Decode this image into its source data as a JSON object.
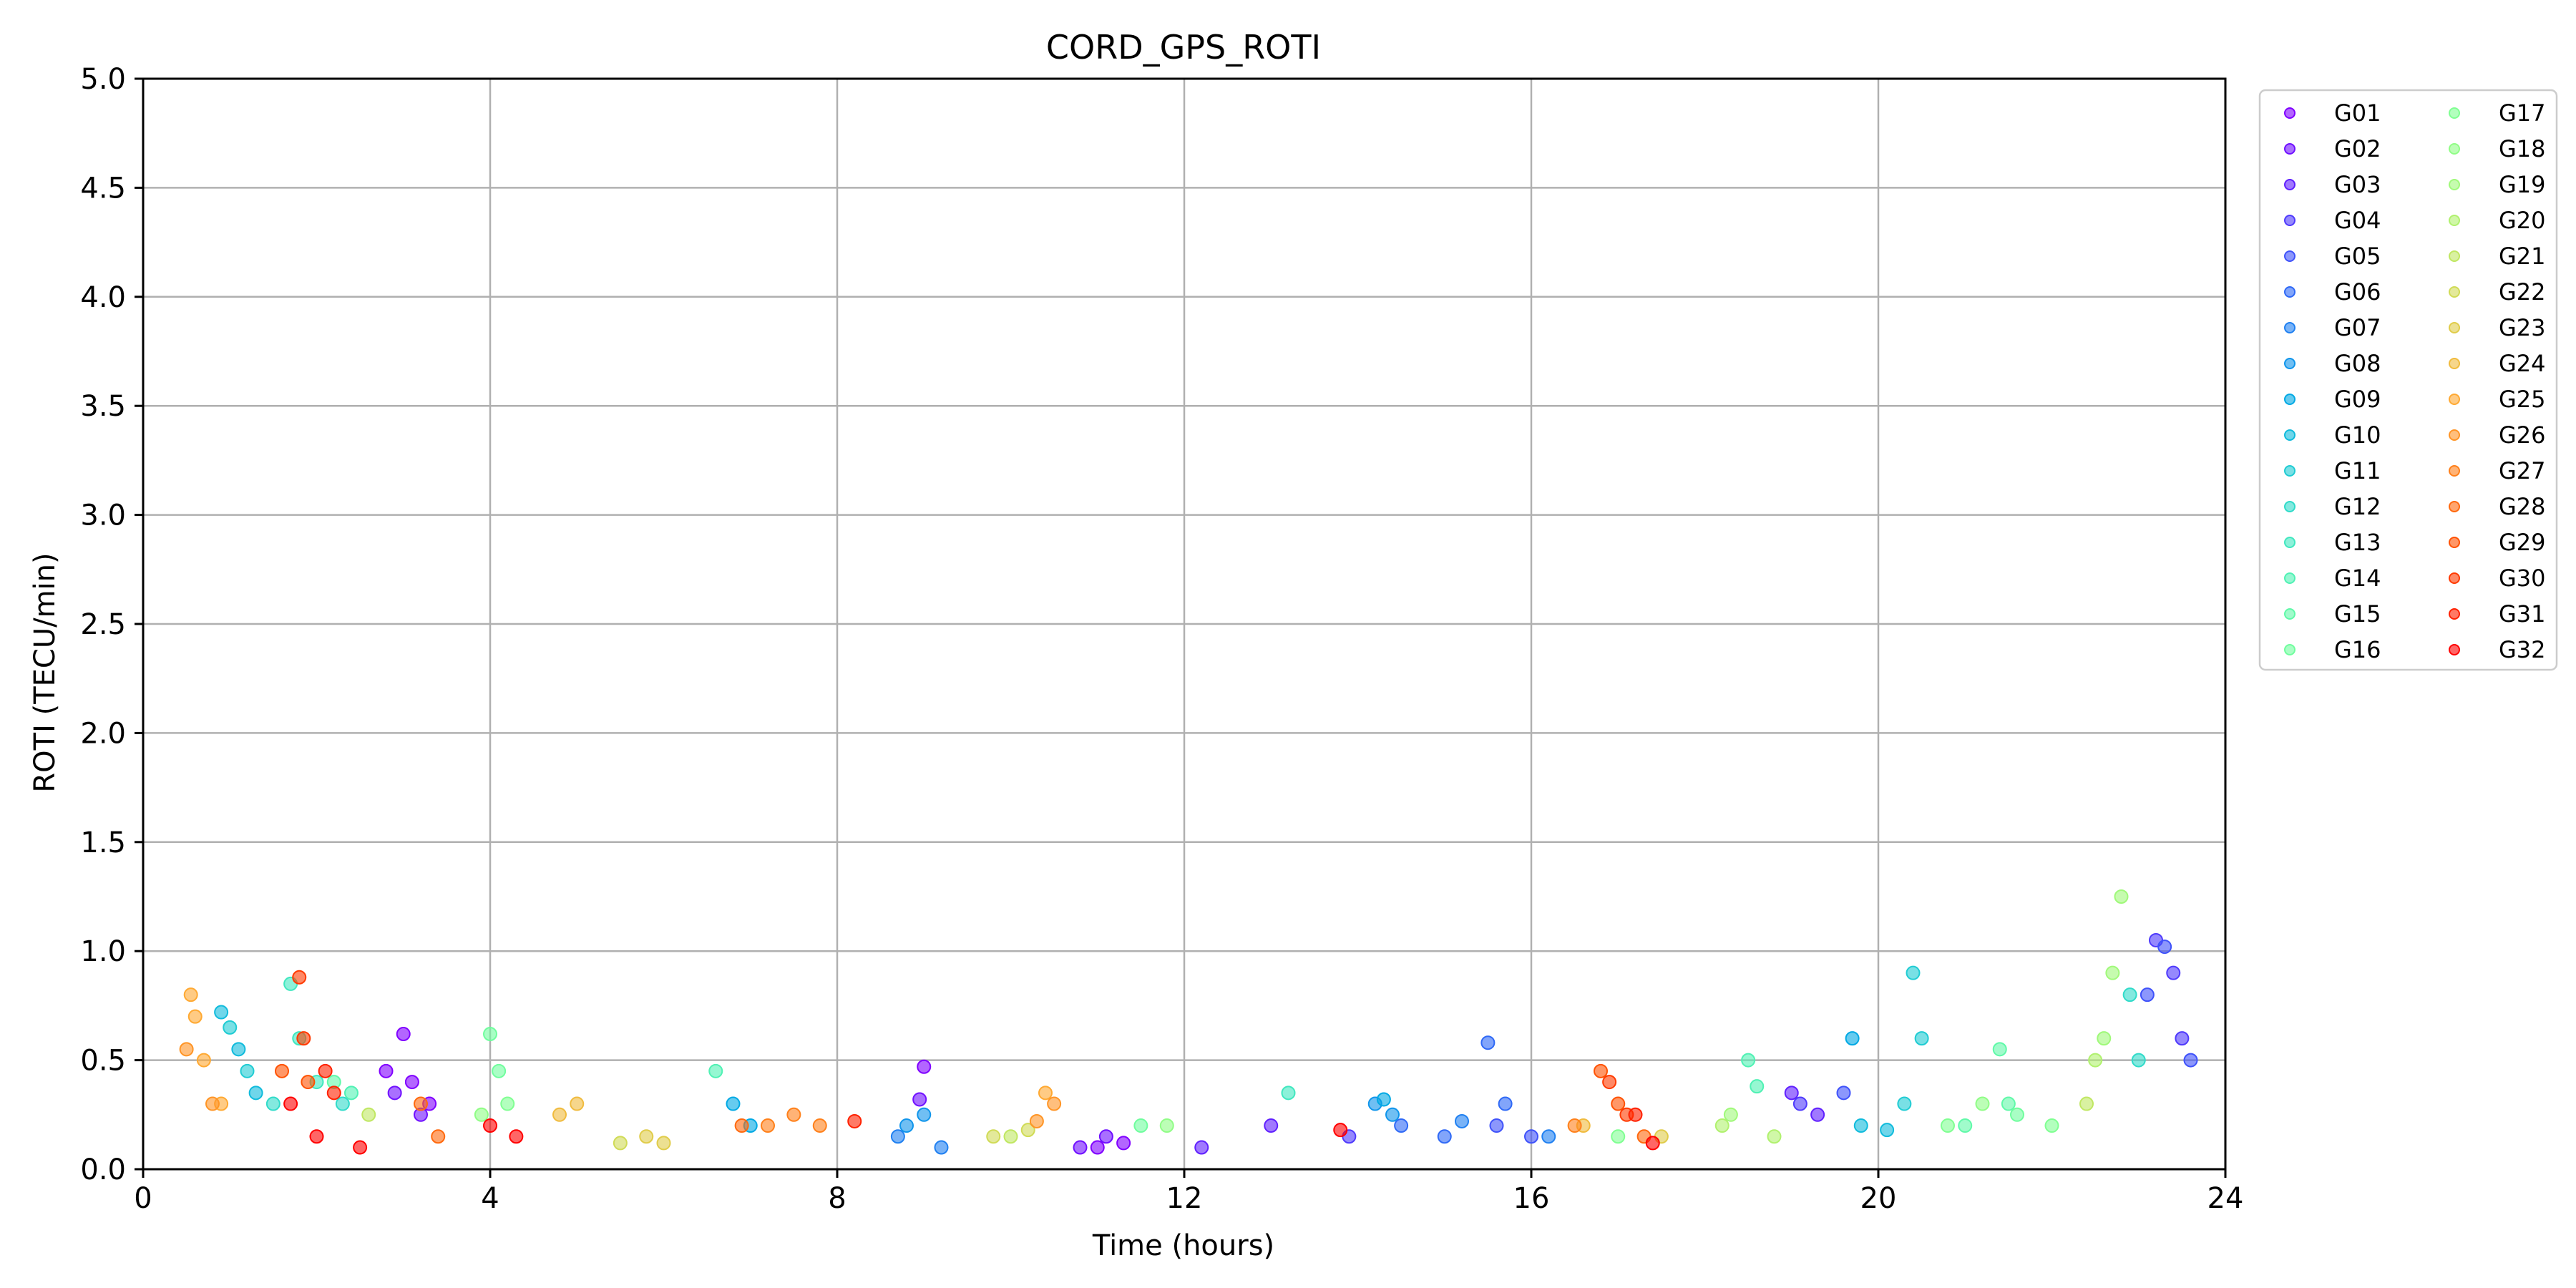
{
  "chart_data": {
    "type": "scatter",
    "title": "CORD_GPS_ROTI",
    "xlabel": "Time (hours)",
    "ylabel": "ROTI (TECU/min)",
    "xlim": [
      0,
      24
    ],
    "ylim": [
      0,
      5
    ],
    "xticks": [
      0,
      4,
      8,
      12,
      16,
      20,
      24
    ],
    "yticks": [
      0.0,
      0.5,
      1.0,
      1.5,
      2.0,
      2.5,
      3.0,
      3.5,
      4.0,
      4.5,
      5.0
    ],
    "xtick_labels": [
      "0",
      "4",
      "8",
      "12",
      "16",
      "20",
      "24"
    ],
    "ytick_labels": [
      "0.0",
      "0.5",
      "1.0",
      "1.5",
      "2.0",
      "2.5",
      "3.0",
      "3.5",
      "4.0",
      "4.5",
      "5.0"
    ],
    "grid": true,
    "legend_position": "outside-right",
    "legend_columns": 2,
    "series": [
      {
        "name": "G01",
        "color": "#8000ff",
        "points": [
          [
            2.8,
            0.45
          ],
          [
            3.0,
            0.62
          ],
          [
            3.1,
            0.4
          ],
          [
            3.3,
            0.3
          ],
          [
            9.0,
            0.47
          ],
          [
            11.0,
            0.1
          ],
          [
            11.3,
            0.12
          ]
        ]
      },
      {
        "name": "G02",
        "color": "#7010ff",
        "points": [
          [
            2.9,
            0.35
          ],
          [
            3.2,
            0.25
          ],
          [
            8.95,
            0.32
          ],
          [
            10.8,
            0.1
          ],
          [
            11.1,
            0.15
          ]
        ]
      },
      {
        "name": "G03",
        "color": "#6020fe",
        "points": [
          [
            12.2,
            0.1
          ],
          [
            13.0,
            0.2
          ],
          [
            19.0,
            0.35
          ],
          [
            19.3,
            0.25
          ]
        ]
      },
      {
        "name": "G04",
        "color": "#4f3afc",
        "points": [
          [
            13.9,
            0.15
          ],
          [
            19.1,
            0.3
          ],
          [
            23.2,
            1.05
          ],
          [
            23.4,
            0.9
          ],
          [
            23.5,
            0.6
          ]
        ]
      },
      {
        "name": "G05",
        "color": "#3f52fa",
        "points": [
          [
            15.6,
            0.2
          ],
          [
            16.0,
            0.15
          ],
          [
            19.6,
            0.35
          ],
          [
            23.1,
            0.8
          ],
          [
            23.3,
            1.02
          ],
          [
            23.6,
            0.5
          ]
        ]
      },
      {
        "name": "G06",
        "color": "#2f69f6",
        "points": [
          [
            15.5,
            0.58
          ],
          [
            15.7,
            0.3
          ],
          [
            14.5,
            0.2
          ],
          [
            15.0,
            0.15
          ]
        ]
      },
      {
        "name": "G07",
        "color": "#2080f1",
        "points": [
          [
            8.7,
            0.15
          ],
          [
            9.2,
            0.1
          ],
          [
            15.2,
            0.22
          ],
          [
            16.2,
            0.15
          ]
        ]
      },
      {
        "name": "G08",
        "color": "#1095eb",
        "points": [
          [
            8.8,
            0.2
          ],
          [
            9.0,
            0.25
          ],
          [
            14.2,
            0.3
          ],
          [
            14.4,
            0.25
          ]
        ]
      },
      {
        "name": "G09",
        "color": "#00a9e4",
        "points": [
          [
            6.8,
            0.3
          ],
          [
            7.0,
            0.2
          ],
          [
            14.3,
            0.32
          ],
          [
            19.7,
            0.6
          ]
        ]
      },
      {
        "name": "G10",
        "color": "#10bbdc",
        "points": [
          [
            0.9,
            0.72
          ],
          [
            1.1,
            0.55
          ],
          [
            1.3,
            0.35
          ],
          [
            19.8,
            0.2
          ],
          [
            20.1,
            0.18
          ]
        ]
      },
      {
        "name": "G11",
        "color": "#20ccd3",
        "points": [
          [
            1.0,
            0.65
          ],
          [
            1.2,
            0.45
          ],
          [
            20.4,
            0.9
          ],
          [
            20.5,
            0.6
          ],
          [
            20.3,
            0.3
          ]
        ]
      },
      {
        "name": "G12",
        "color": "#30dbc9",
        "points": [
          [
            1.5,
            0.3
          ],
          [
            2.3,
            0.3
          ],
          [
            22.9,
            0.8
          ],
          [
            23.0,
            0.5
          ]
        ]
      },
      {
        "name": "G13",
        "color": "#40e7bf",
        "points": [
          [
            1.7,
            0.85
          ],
          [
            1.8,
            0.6
          ],
          [
            2.0,
            0.4
          ],
          [
            13.2,
            0.35
          ]
        ]
      },
      {
        "name": "G14",
        "color": "#50f1b4",
        "points": [
          [
            2.4,
            0.35
          ],
          [
            6.6,
            0.45
          ],
          [
            18.5,
            0.5
          ],
          [
            18.6,
            0.38
          ]
        ]
      },
      {
        "name": "G15",
        "color": "#60f9a9",
        "points": [
          [
            2.2,
            0.4
          ],
          [
            21.4,
            0.55
          ],
          [
            21.5,
            0.3
          ],
          [
            21.0,
            0.2
          ]
        ]
      },
      {
        "name": "G16",
        "color": "#70fd9e",
        "points": [
          [
            4.0,
            0.62
          ],
          [
            4.1,
            0.45
          ],
          [
            11.5,
            0.2
          ],
          [
            21.6,
            0.25
          ]
        ]
      },
      {
        "name": "G17",
        "color": "#80ff92",
        "points": [
          [
            4.2,
            0.3
          ],
          [
            17.0,
            0.15
          ],
          [
            20.8,
            0.2
          ],
          [
            22.0,
            0.2
          ]
        ]
      },
      {
        "name": "G18",
        "color": "#90fd86",
        "points": [
          [
            3.9,
            0.25
          ],
          [
            11.8,
            0.2
          ],
          [
            21.2,
            0.3
          ]
        ]
      },
      {
        "name": "G19",
        "color": "#a0f97a",
        "points": [
          [
            22.8,
            1.25
          ],
          [
            22.7,
            0.9
          ],
          [
            22.6,
            0.6
          ],
          [
            18.3,
            0.25
          ]
        ]
      },
      {
        "name": "G20",
        "color": "#b0f16e",
        "points": [
          [
            18.2,
            0.2
          ],
          [
            18.8,
            0.15
          ],
          [
            22.5,
            0.5
          ]
        ]
      },
      {
        "name": "G21",
        "color": "#c0e762",
        "points": [
          [
            2.6,
            0.25
          ],
          [
            10.0,
            0.15
          ],
          [
            22.4,
            0.3
          ]
        ]
      },
      {
        "name": "G22",
        "color": "#d0db56",
        "points": [
          [
            9.8,
            0.15
          ],
          [
            10.2,
            0.18
          ],
          [
            5.5,
            0.12
          ]
        ]
      },
      {
        "name": "G23",
        "color": "#e0cc4a",
        "points": [
          [
            5.8,
            0.15
          ],
          [
            6.0,
            0.12
          ],
          [
            17.5,
            0.15
          ]
        ]
      },
      {
        "name": "G24",
        "color": "#f0bb3e",
        "points": [
          [
            5.0,
            0.3
          ],
          [
            4.8,
            0.25
          ],
          [
            16.6,
            0.2
          ]
        ]
      },
      {
        "name": "G25",
        "color": "#ffa932",
        "points": [
          [
            0.55,
            0.8
          ],
          [
            0.6,
            0.7
          ],
          [
            0.7,
            0.5
          ],
          [
            0.9,
            0.3
          ],
          [
            10.4,
            0.35
          ]
        ]
      },
      {
        "name": "G26",
        "color": "#ff9526",
        "points": [
          [
            0.5,
            0.55
          ],
          [
            0.8,
            0.3
          ],
          [
            10.5,
            0.3
          ],
          [
            10.3,
            0.22
          ]
        ]
      },
      {
        "name": "G27",
        "color": "#ff801a",
        "points": [
          [
            7.2,
            0.2
          ],
          [
            7.5,
            0.25
          ],
          [
            7.8,
            0.2
          ],
          [
            16.5,
            0.2
          ]
        ]
      },
      {
        "name": "G28",
        "color": "#ff690e",
        "points": [
          [
            3.2,
            0.3
          ],
          [
            3.4,
            0.15
          ],
          [
            6.9,
            0.2
          ],
          [
            17.3,
            0.15
          ]
        ]
      },
      {
        "name": "G29",
        "color": "#ff5202",
        "points": [
          [
            1.6,
            0.45
          ],
          [
            1.9,
            0.4
          ],
          [
            16.8,
            0.45
          ],
          [
            17.0,
            0.3
          ]
        ]
      },
      {
        "name": "G30",
        "color": "#ff3a00",
        "points": [
          [
            1.8,
            0.88
          ],
          [
            1.85,
            0.6
          ],
          [
            16.9,
            0.4
          ],
          [
            17.1,
            0.25
          ]
        ]
      },
      {
        "name": "G31",
        "color": "#ff2100",
        "points": [
          [
            2.1,
            0.45
          ],
          [
            2.2,
            0.35
          ],
          [
            17.2,
            0.25
          ],
          [
            8.2,
            0.22
          ]
        ]
      },
      {
        "name": "G32",
        "color": "#ff0000",
        "points": [
          [
            1.7,
            0.3
          ],
          [
            2.0,
            0.15
          ],
          [
            2.5,
            0.1
          ],
          [
            4.0,
            0.2
          ],
          [
            4.3,
            0.15
          ],
          [
            13.8,
            0.18
          ],
          [
            17.4,
            0.12
          ]
        ]
      }
    ]
  }
}
